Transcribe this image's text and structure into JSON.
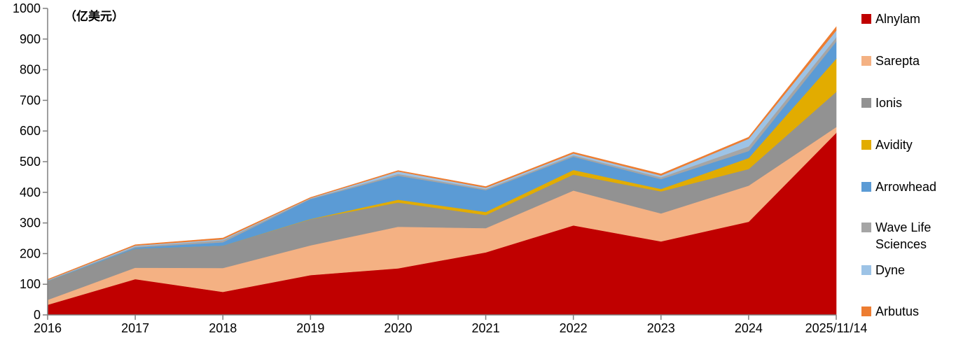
{
  "chart_data": {
    "type": "area",
    "stacked": true,
    "unit_label": "（亿美元）",
    "categories": [
      "2016",
      "2017",
      "2018",
      "2019",
      "2020",
      "2021",
      "2022",
      "2023",
      "2024",
      "2025/11/14"
    ],
    "ylim": [
      0,
      1000
    ],
    "yticks": [
      0,
      100,
      200,
      300,
      400,
      500,
      600,
      700,
      800,
      900,
      1000
    ],
    "grid": false,
    "legend_position": "right",
    "series": [
      {
        "name": "Alnylam",
        "color": "#C00000",
        "values": [
          33,
          117,
          75,
          130,
          152,
          204,
          292,
          240,
          304,
          594
        ]
      },
      {
        "name": "Sarepta",
        "color": "#F4B183",
        "values": [
          16,
          37,
          78,
          97,
          136,
          79,
          114,
          91,
          118,
          19
        ]
      },
      {
        "name": "Ionis",
        "color": "#929292",
        "values": [
          61,
          62,
          73,
          85,
          79,
          43,
          52,
          72,
          54,
          115
        ]
      },
      {
        "name": "Avidity",
        "color": "#E2AC00",
        "values": [
          0,
          0,
          0,
          1,
          9,
          10,
          15,
          8,
          36,
          108
        ]
      },
      {
        "name": "Arrowhead",
        "color": "#5B9BD5",
        "values": [
          1,
          4,
          11,
          65,
          78,
          71,
          43,
          32,
          23,
          56
        ]
      },
      {
        "name": "Wave Life Sciences",
        "color": "#A5A5A5",
        "values": [
          2,
          3,
          7,
          2,
          6,
          4,
          5,
          6,
          15,
          14
        ]
      },
      {
        "name": "Dyne",
        "color": "#9DC3E6",
        "values": [
          1,
          3,
          3,
          1,
          8,
          4,
          6,
          6,
          25,
          22
        ]
      },
      {
        "name": "Arbutus",
        "color": "#ED7D31",
        "values": [
          2,
          3,
          4,
          2,
          3,
          4,
          4,
          5,
          5,
          12
        ]
      }
    ]
  }
}
